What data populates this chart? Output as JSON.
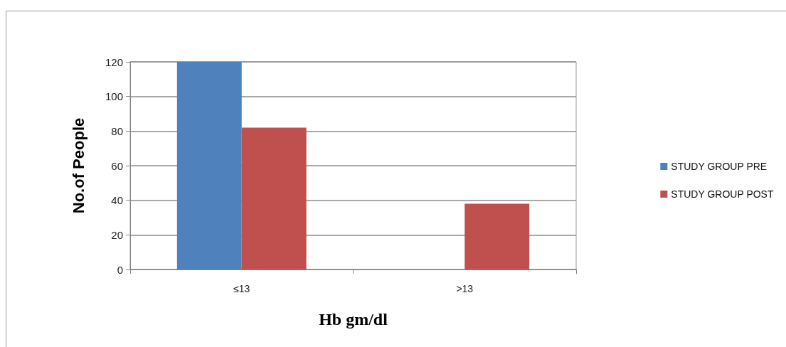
{
  "chart_data": {
    "type": "bar",
    "xlabel": "Hb gm/dl",
    "ylabel": "No.of People",
    "categories": [
      "≤13",
      ">13"
    ],
    "series": [
      {
        "name": "STUDY GROUP PRE",
        "color": "#4f81bd",
        "values": [
          120,
          0
        ]
      },
      {
        "name": "STUDY GROUP POST",
        "color": "#c0504d",
        "values": [
          82,
          38
        ]
      }
    ],
    "ylim": [
      0,
      120
    ],
    "yticks": [
      0,
      20,
      40,
      60,
      80,
      100,
      120
    ],
    "grid": "y",
    "legend": "right"
  }
}
